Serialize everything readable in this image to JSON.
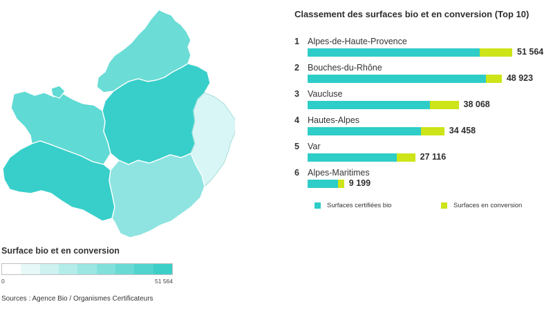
{
  "chart_data": [
    {
      "type": "map",
      "legend_title": "Surface bio et en conversion",
      "scale_min": "0",
      "scale_max": "51 564",
      "scale_colors": [
        "#ffffff",
        "#e6f8f7",
        "#cdf2f0",
        "#b4ece9",
        "#9be6e2",
        "#82e0db",
        "#69dad4",
        "#50d4cd",
        "#3ccfc8"
      ],
      "regions": [
        {
          "value": 51564,
          "color": "#38cfca"
        },
        {
          "value": 48923,
          "color": "#38cfca"
        },
        {
          "value": 38068,
          "color": "#5fdad4"
        },
        {
          "value": 34458,
          "color": "#6bdcd6"
        },
        {
          "value": 27116,
          "color": "#8fe4e1"
        },
        {
          "value": 9199,
          "color": "#d8f6f5"
        }
      ],
      "source": "Sources : Agence Bio / Organismes Certificateurs"
    },
    {
      "type": "bar",
      "orientation": "horizontal",
      "stacked": true,
      "title": "Classement des surfaces bio et en conversion (Top 10)",
      "categories": [
        "Alpes-de-Haute-Provence",
        "Bouches-du-Rhône",
        "Vaucluse",
        "Hautes-Alpes",
        "Var",
        "Alpes-Maritimes"
      ],
      "ranks": [
        "1",
        "2",
        "3",
        "4",
        "5",
        "6"
      ],
      "series": [
        {
          "name": "Surfaces certifiées bio",
          "color": "#2ecdc8",
          "values": [
            43400,
            45000,
            30900,
            28500,
            22500,
            7700
          ]
        },
        {
          "name": "Surfaces en conversion",
          "color": "#cde418",
          "values": [
            8164,
            3923,
            7168,
            5958,
            4616,
            1499
          ]
        }
      ],
      "totals": [
        51564,
        48923,
        38068,
        34458,
        27116,
        9199
      ],
      "total_labels": [
        "51 564",
        "48 923",
        "38 068",
        "34 458",
        "27 116",
        "9 199"
      ],
      "xlim": [
        0,
        51564
      ],
      "legend_position": "bottom"
    }
  ]
}
